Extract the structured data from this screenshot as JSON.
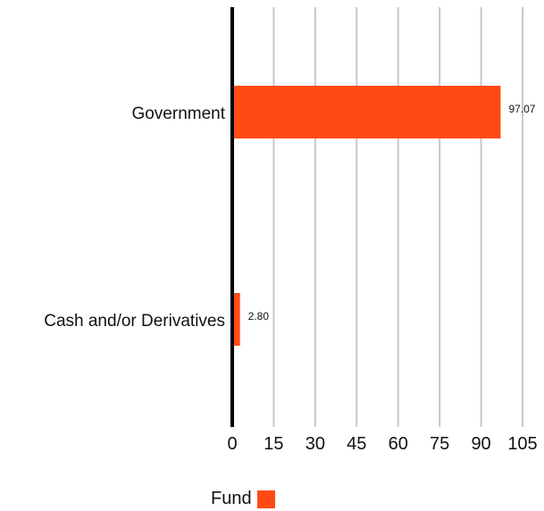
{
  "chart_data": {
    "type": "bar",
    "orientation": "horizontal",
    "categories": [
      "Government",
      "Cash and/or Derivatives"
    ],
    "series": [
      {
        "name": "Fund",
        "values": [
          97.07,
          2.8
        ],
        "labels": [
          "97.07",
          "2.80"
        ],
        "color": "#ff4a14"
      }
    ],
    "xlim": [
      0,
      105
    ],
    "xticks": [
      "0",
      "15",
      "30",
      "45",
      "60",
      "75",
      "90",
      "105"
    ],
    "grid": true,
    "legend_position": "bottom-center"
  },
  "legend": {
    "label": "Fund",
    "color": "#ff4a14"
  }
}
